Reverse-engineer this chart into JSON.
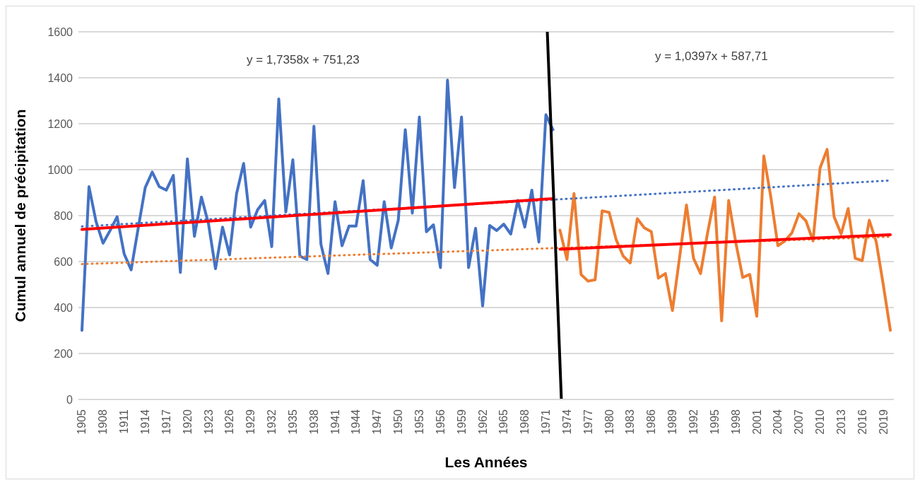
{
  "chart_data": {
    "type": "line",
    "xlabel": "Les Années",
    "ylabel": "Cumul annuel de précipitation",
    "annotations": [
      "y = 1,7358x + 751,23",
      "y = 1,0397x + 587,71"
    ],
    "xlim": [
      1904.5,
      2020.5
    ],
    "xticks": [
      1905,
      1908,
      1911,
      1914,
      1917,
      1920,
      1923,
      1926,
      1929,
      1932,
      1935,
      1938,
      1941,
      1944,
      1947,
      1950,
      1953,
      1956,
      1959,
      1962,
      1965,
      1968,
      1971,
      1974,
      1977,
      1980,
      1983,
      1986,
      1989,
      1992,
      1995,
      1998,
      2001,
      2004,
      2007,
      2010,
      2013,
      2016,
      2019
    ],
    "ylim": [
      0,
      1600
    ],
    "yticks": [
      0,
      200,
      400,
      600,
      800,
      1000,
      1200,
      1400,
      1600
    ],
    "grid": "y",
    "marker": "none",
    "series": [
      {
        "color": "#4472c4",
        "x": [
          1905,
          1906,
          1907,
          1908,
          1909,
          1910,
          1911,
          1912,
          1913,
          1914,
          1915,
          1916,
          1917,
          1918,
          1919,
          1920,
          1921,
          1922,
          1923,
          1924,
          1925,
          1926,
          1927,
          1928,
          1929,
          1930,
          1931,
          1932,
          1933,
          1934,
          1935,
          1936,
          1937,
          1938,
          1939,
          1940,
          1941,
          1942,
          1943,
          1944,
          1945,
          1946,
          1947,
          1948,
          1949,
          1950,
          1951,
          1952,
          1953,
          1954,
          1955,
          1956,
          1957,
          1958,
          1959,
          1960,
          1961,
          1962,
          1963,
          1964,
          1965,
          1966,
          1967,
          1968,
          1969,
          1970,
          1971,
          1972
        ],
        "values": [
          301,
          926,
          775,
          680,
          735,
          795,
          634,
          564,
          745,
          922,
          990,
          926,
          911,
          975,
          553,
          1047,
          710,
          881,
          765,
          569,
          750,
          629,
          896,
          1027,
          750,
          826,
          866,
          665,
          1308,
          816,
          1043,
          624,
          609,
          1189,
          675,
          548,
          861,
          669,
          755,
          755,
          952,
          609,
          584,
          861,
          659,
          780,
          1174,
          811,
          1229,
          730,
          760,
          574,
          1390,
          922,
          1229,
          574,
          745,
          407,
          757,
          735,
          763,
          720,
          866,
          750,
          911,
          685,
          1239,
          1174
        ]
      },
      {
        "color": "#ed7d31",
        "x": [
          1973,
          1974,
          1975,
          1976,
          1977,
          1978,
          1979,
          1980,
          1981,
          1982,
          1983,
          1984,
          1985,
          1986,
          1987,
          1988,
          1989,
          1990,
          1991,
          1992,
          1993,
          1994,
          1995,
          1996,
          1997,
          1998,
          1999,
          2000,
          2001,
          2002,
          2003,
          2004,
          2005,
          2006,
          2007,
          2008,
          2009,
          2010,
          2011,
          2012,
          2013,
          2014,
          2015,
          2016,
          2017,
          2018,
          2019,
          2020
        ],
        "values": [
          737,
          609,
          896,
          544,
          515,
          521,
          821,
          814,
          695,
          624,
          594,
          787,
          747,
          730,
          528,
          548,
          387,
          614,
          846,
          614,
          548,
          725,
          881,
          342,
          866,
          685,
          531,
          544,
          362,
          1060,
          881,
          669,
          690,
          725,
          808,
          777,
          690,
          1007,
          1088,
          795,
          720,
          831,
          614,
          604,
          780,
          685,
          498,
          301
        ]
      },
      {
        "color": "#4472c4",
        "line_style": "dotted",
        "x": [
          1905,
          2020
        ],
        "values": [
          753,
          953
        ]
      },
      {
        "color": "#ed7d31",
        "line_style": "dotted",
        "x": [
          1905,
          2020
        ],
        "values": [
          589,
          708
        ]
      },
      {
        "color": "#ff0000",
        "x": [
          1905,
          1972
        ],
        "values": [
          740,
          874
        ]
      },
      {
        "color": "#ff0000",
        "x": [
          1973,
          2020
        ],
        "values": [
          654,
          717
        ]
      },
      {
        "color": "#000000",
        "x": [
          1971.2,
          1973.2
        ],
        "values": [
          1600,
          0
        ]
      }
    ]
  }
}
